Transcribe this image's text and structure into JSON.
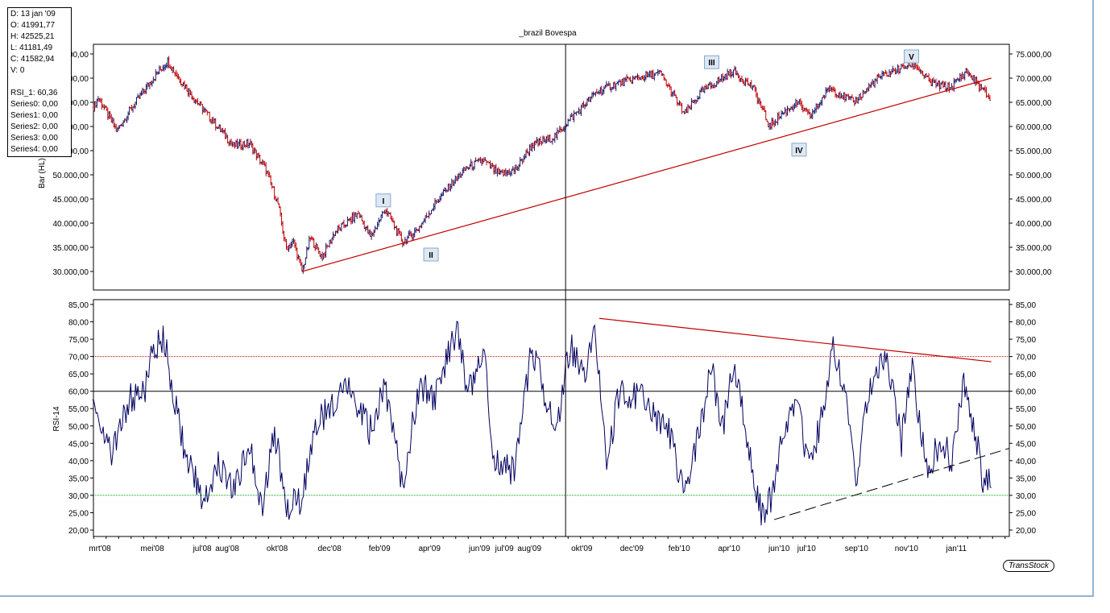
{
  "title": "_brazil Bovespa",
  "info": {
    "lines": [
      "D: 13 jan '09",
      "O: 41991,77",
      "H: 42525,21",
      "L: 41181,49",
      "C: 41582,94",
      "V: 0",
      "",
      "RSI_1: 60,36",
      "Series0: 0,00",
      "Series1: 0,00",
      "Series2: 0,00",
      "Series3: 0,00",
      "Series4: 0,00"
    ]
  },
  "logo": "TransStock",
  "colors": {
    "up": "#1a1a6e",
    "down": "#c00000",
    "trend": "#c00000",
    "rsi": "#000060",
    "ob": "#d00000",
    "os": "#00a000"
  },
  "chart_data": [
    {
      "type": "bar",
      "title": "_brazil Bovespa",
      "ylabel": "Bar (HL)",
      "ylim": [
        27000,
        78000
      ],
      "yticks": [
        30000,
        35000,
        40000,
        45000,
        50000,
        55000,
        60000,
        65000,
        70000,
        75000
      ],
      "ytick_labels": [
        "30.000,00",
        "35.000,00",
        "40.000,00",
        "45.000,00",
        "50.000,00",
        "55.000,00",
        "60.000,00",
        "65.000,00",
        "70.000,00",
        "75.000,00"
      ],
      "x_unit": "months since mrt'08",
      "price_path": [
        [
          -0.26,
          64000
        ],
        [
          -0.06,
          66000
        ],
        [
          0.68,
          59000
        ],
        [
          1.16,
          63000
        ],
        [
          2.13,
          70000
        ],
        [
          2.71,
          73500
        ],
        [
          3.03,
          71000
        ],
        [
          3.74,
          66000
        ],
        [
          4.39,
          62000
        ],
        [
          5.35,
          56000
        ],
        [
          6.0,
          56500
        ],
        [
          6.65,
          51000
        ],
        [
          7.13,
          44000
        ],
        [
          7.45,
          35000
        ],
        [
          7.77,
          36000
        ],
        [
          8.1,
          30000
        ],
        [
          8.42,
          37000
        ],
        [
          8.9,
          33000
        ],
        [
          9.39,
          38000
        ],
        [
          9.87,
          40000
        ],
        [
          10.35,
          42000
        ],
        [
          10.84,
          37000
        ],
        [
          11.42,
          43000
        ],
        [
          12.13,
          36000
        ],
        [
          12.77,
          39000
        ],
        [
          13.42,
          44000
        ],
        [
          14.06,
          48000
        ],
        [
          14.71,
          51500
        ],
        [
          15.35,
          53000
        ],
        [
          16.0,
          50000
        ],
        [
          16.65,
          51000
        ],
        [
          17.29,
          56000
        ],
        [
          18.26,
          58000
        ],
        [
          18.74,
          61000
        ],
        [
          19.87,
          67000
        ],
        [
          20.52,
          68500
        ],
        [
          21.48,
          70000
        ],
        [
          22.45,
          71000
        ],
        [
          23.42,
          62500
        ],
        [
          24.06,
          67000
        ],
        [
          25.35,
          71500
        ],
        [
          26.16,
          68000
        ],
        [
          26.81,
          60000
        ],
        [
          27.29,
          62500
        ],
        [
          27.94,
          65000
        ],
        [
          28.42,
          62000
        ],
        [
          29.23,
          68000
        ],
        [
          30.19,
          65000
        ],
        [
          31.16,
          70000
        ],
        [
          31.81,
          71500
        ],
        [
          32.61,
          73000
        ],
        [
          33.26,
          69000
        ],
        [
          34.06,
          68000
        ],
        [
          34.71,
          71500
        ],
        [
          35.19,
          68500
        ],
        [
          35.68,
          65500
        ]
      ],
      "trendline": [
        [
          8.1,
          30000
        ],
        [
          35.7,
          70000
        ]
      ],
      "waves": [
        {
          "label": "I",
          "x": 11.35,
          "y": 44700
        },
        {
          "label": "II",
          "x": 13.26,
          "y": 33500
        },
        {
          "label": "III",
          "x": 24.5,
          "y": 73300
        },
        {
          "label": "IV",
          "x": 28.0,
          "y": 55200
        },
        {
          "label": "V",
          "x": 32.5,
          "y": 74500
        }
      ]
    },
    {
      "type": "line",
      "ylabel": "RSI-14",
      "ylim": [
        18,
        87
      ],
      "yticks": [
        20,
        25,
        30,
        35,
        40,
        45,
        50,
        55,
        60,
        65,
        70,
        75,
        80,
        85
      ],
      "ytick_labels": [
        "20,00",
        "25,00",
        "30,00",
        "35,00",
        "40,00",
        "45,00",
        "50,00",
        "55,00",
        "60,00",
        "65,00",
        "70,00",
        "75,00",
        "80,00",
        "85,00"
      ],
      "levels": {
        "overbought": 70,
        "mid": 60,
        "oversold": 30
      },
      "rsi": [
        [
          -0.3,
          62
        ],
        [
          0.2,
          45
        ],
        [
          0.5,
          42
        ],
        [
          1.2,
          58
        ],
        [
          1.8,
          60
        ],
        [
          2.1,
          72
        ],
        [
          2.6,
          75
        ],
        [
          2.9,
          60
        ],
        [
          3.4,
          42
        ],
        [
          4.2,
          28
        ],
        [
          4.7,
          40
        ],
        [
          5.4,
          32
        ],
        [
          6.0,
          45
        ],
        [
          6.5,
          27
        ],
        [
          7.0,
          48
        ],
        [
          7.5,
          27
        ],
        [
          8.1,
          29
        ],
        [
          8.6,
          50
        ],
        [
          9.2,
          55
        ],
        [
          9.9,
          62
        ],
        [
          10.4,
          55
        ],
        [
          10.8,
          48
        ],
        [
          11.4,
          62
        ],
        [
          12.1,
          33
        ],
        [
          12.8,
          62
        ],
        [
          13.4,
          58
        ],
        [
          14.3,
          78
        ],
        [
          14.7,
          60
        ],
        [
          15.4,
          70
        ],
        [
          15.8,
          40
        ],
        [
          16.6,
          37
        ],
        [
          17.3,
          73
        ],
        [
          18.3,
          47
        ],
        [
          18.6,
          65
        ],
        [
          18.9,
          72
        ],
        [
          19.5,
          65
        ],
        [
          19.8,
          82
        ],
        [
          20.3,
          38
        ],
        [
          20.8,
          60
        ],
        [
          21.8,
          58
        ],
        [
          22.8,
          48
        ],
        [
          23.4,
          30
        ],
        [
          24.1,
          52
        ],
        [
          24.5,
          67
        ],
        [
          24.9,
          48
        ],
        [
          25.4,
          68
        ],
        [
          26.0,
          42
        ],
        [
          26.5,
          24
        ],
        [
          26.9,
          29
        ],
        [
          27.3,
          45
        ],
        [
          27.9,
          59
        ],
        [
          28.4,
          37
        ],
        [
          28.9,
          52
        ],
        [
          29.4,
          73
        ],
        [
          29.9,
          55
        ],
        [
          30.3,
          36
        ],
        [
          30.8,
          60
        ],
        [
          31.5,
          72
        ],
        [
          32.1,
          45
        ],
        [
          32.5,
          68
        ],
        [
          33.1,
          37
        ],
        [
          33.7,
          46
        ],
        [
          34.1,
          40
        ],
        [
          34.6,
          64
        ],
        [
          35.0,
          50
        ],
        [
          35.4,
          33
        ],
        [
          35.7,
          35
        ]
      ],
      "downtrend": [
        [
          20.0,
          81
        ],
        [
          35.7,
          68.5
        ]
      ],
      "uptrend_dashed": [
        [
          27.0,
          23
        ],
        [
          36.4,
          43.5
        ]
      ]
    }
  ],
  "xaxis": {
    "ticks": [
      0,
      2.1,
      4.1,
      5.1,
      7.1,
      9.2,
      11.2,
      13.2,
      15.2,
      16.2,
      17.2,
      19.3,
      21.3,
      23.2,
      25.2,
      27.2,
      28.3,
      30.3,
      32.3,
      34.3
    ],
    "labels": [
      "mrt'08",
      "mei'08",
      "jul'08",
      "aug'08",
      "okt'08",
      "dec'08",
      "feb'09",
      "apr'09",
      "jun'09",
      "jul'09",
      "aug'09",
      "okt'09",
      "dec'09",
      "feb'10",
      "apr'10",
      "jun'10",
      "jul'10",
      "sep'10",
      "nov'10",
      "jan'11"
    ]
  },
  "cursor_x": 18.65
}
